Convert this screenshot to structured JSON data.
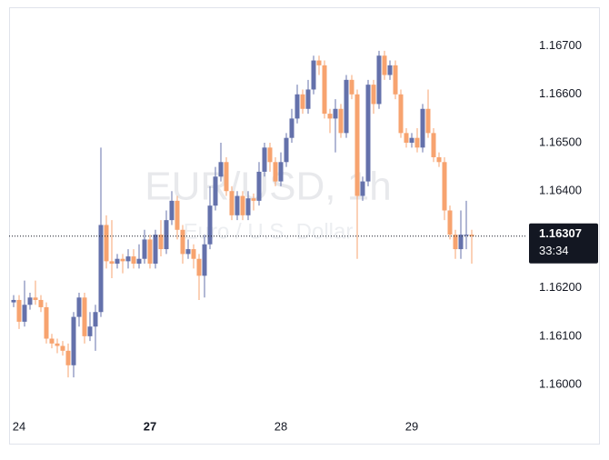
{
  "chart_data": {
    "type": "candlestick",
    "watermark": "EUR/USD, 1h",
    "watermark_sub": "Euro / U.S. Dollar",
    "up_color": "#6471ab",
    "down_color": "#f7a36f",
    "open": [
      1.1617,
      1.16175,
      1.1613,
      1.16165,
      1.1618,
      1.16175,
      1.1616,
      1.16095,
      1.16085,
      1.1608,
      1.1607,
      1.1604,
      1.1614,
      1.1618,
      1.161,
      1.1612,
      1.1615,
      1.1633,
      1.16255,
      1.1625,
      1.1626,
      1.16255,
      1.16265,
      1.1625,
      1.1626,
      1.163,
      1.1625,
      1.1631,
      1.1628,
      1.1634,
      1.1638,
      1.1632,
      1.1627,
      1.1628,
      1.1626,
      1.16225,
      1.1629,
      1.1637,
      1.1643,
      1.1646,
      1.164,
      1.1635,
      1.1639,
      1.1635,
      1.16385,
      1.1638,
      1.1644,
      1.1649,
      1.1646,
      1.1642,
      1.1646,
      1.1651,
      1.1655,
      1.166,
      1.1657,
      1.1661,
      1.1667,
      1.1666,
      1.1656,
      1.1655,
      1.1657,
      1.1652,
      1.1663,
      1.166,
      1.1639,
      1.1642,
      1.1662,
      1.1658,
      1.1668,
      1.1664,
      1.1666,
      1.166,
      1.1652,
      1.165,
      1.1651,
      1.1649,
      1.1657,
      1.1652,
      1.1647,
      1.1646,
      1.1636,
      1.1631,
      1.1628,
      1.1631,
      1.1631
    ],
    "high": [
      1.16185,
      1.16185,
      1.16215,
      1.1619,
      1.16215,
      1.16185,
      1.1617,
      1.16105,
      1.16095,
      1.1609,
      1.16085,
      1.1615,
      1.1619,
      1.1619,
      1.1615,
      1.16165,
      1.1649,
      1.1635,
      1.1634,
      1.1627,
      1.1627,
      1.1628,
      1.1628,
      1.1629,
      1.1632,
      1.1631,
      1.1632,
      1.1634,
      1.1636,
      1.164,
      1.1639,
      1.1633,
      1.163,
      1.1629,
      1.1627,
      1.1631,
      1.1641,
      1.1645,
      1.165,
      1.1647,
      1.1641,
      1.164,
      1.164,
      1.164,
      1.16395,
      1.1646,
      1.165,
      1.165,
      1.1647,
      1.1648,
      1.1652,
      1.1657,
      1.1662,
      1.1661,
      1.1663,
      1.1668,
      1.1668,
      1.1667,
      1.1657,
      1.1659,
      1.1658,
      1.1664,
      1.1664,
      1.1661,
      1.1643,
      1.1663,
      1.1663,
      1.1669,
      1.1669,
      1.1667,
      1.1667,
      1.1661,
      1.1653,
      1.1652,
      1.1653,
      1.1658,
      1.1661,
      1.1653,
      1.1648,
      1.1647,
      1.1637,
      1.1632,
      1.1636,
      1.1638,
      1.1632
    ],
    "low": [
      1.1616,
      1.16115,
      1.1612,
      1.16155,
      1.16165,
      1.1615,
      1.16085,
      1.16075,
      1.16065,
      1.1606,
      1.16015,
      1.16015,
      1.1612,
      1.16085,
      1.1609,
      1.1607,
      1.1614,
      1.1624,
      1.1622,
      1.1624,
      1.1623,
      1.1624,
      1.1624,
      1.1624,
      1.1625,
      1.1624,
      1.1624,
      1.16265,
      1.1627,
      1.1633,
      1.163,
      1.1625,
      1.1626,
      1.1624,
      1.16175,
      1.1618,
      1.1628,
      1.1636,
      1.1642,
      1.1639,
      1.1634,
      1.1634,
      1.1634,
      1.1634,
      1.1636,
      1.1637,
      1.1643,
      1.1644,
      1.1641,
      1.1641,
      1.1645,
      1.165,
      1.1654,
      1.1656,
      1.1656,
      1.166,
      1.1664,
      1.1655,
      1.1652,
      1.1648,
      1.1651,
      1.1651,
      1.1659,
      1.1626,
      1.1638,
      1.1641,
      1.1656,
      1.1657,
      1.1663,
      1.1663,
      1.1659,
      1.1651,
      1.1649,
      1.1649,
      1.1648,
      1.1648,
      1.1651,
      1.1646,
      1.1645,
      1.1634,
      1.163,
      1.1626,
      1.1626,
      1.1628,
      1.1625
    ],
    "close": [
      1.16175,
      1.1613,
      1.16165,
      1.1618,
      1.16175,
      1.1616,
      1.16095,
      1.16085,
      1.1608,
      1.1607,
      1.1604,
      1.1614,
      1.1618,
      1.161,
      1.1612,
      1.1615,
      1.1633,
      1.16255,
      1.1625,
      1.1626,
      1.16255,
      1.16265,
      1.1625,
      1.1626,
      1.163,
      1.1625,
      1.1631,
      1.1628,
      1.1634,
      1.1638,
      1.1632,
      1.1627,
      1.1628,
      1.1626,
      1.16225,
      1.1629,
      1.1637,
      1.1643,
      1.1646,
      1.164,
      1.1635,
      1.1639,
      1.1635,
      1.16385,
      1.1638,
      1.1644,
      1.1649,
      1.1646,
      1.1642,
      1.1646,
      1.1651,
      1.1655,
      1.166,
      1.1657,
      1.1661,
      1.1667,
      1.1666,
      1.1656,
      1.1655,
      1.1657,
      1.1652,
      1.1663,
      1.166,
      1.1639,
      1.1642,
      1.1662,
      1.1658,
      1.1668,
      1.1664,
      1.1666,
      1.166,
      1.1652,
      1.165,
      1.1651,
      1.1649,
      1.1657,
      1.1652,
      1.1647,
      1.1646,
      1.1636,
      1.1631,
      1.1628,
      1.1631,
      1.1631,
      1.16307
    ],
    "xlim": [
      -0.5,
      93.5
    ],
    "xticks": [
      {
        "value": 1,
        "label": "24"
      },
      {
        "value": 25,
        "label": "27"
      },
      {
        "value": 49,
        "label": "28"
      },
      {
        "value": 73,
        "label": "29"
      }
    ],
    "ylim": [
      1.1594,
      1.1678
    ],
    "yticks": [
      {
        "value": 1.16,
        "label": "1.16000"
      },
      {
        "value": 1.161,
        "label": "1.16100"
      },
      {
        "value": 1.162,
        "label": "1.16200"
      },
      {
        "value": 1.164,
        "label": "1.16400"
      },
      {
        "value": 1.165,
        "label": "1.16500"
      },
      {
        "value": 1.166,
        "label": "1.16600"
      },
      {
        "value": 1.167,
        "label": "1.16700"
      }
    ],
    "last_price": 1.16307,
    "countdown": "33:34"
  }
}
